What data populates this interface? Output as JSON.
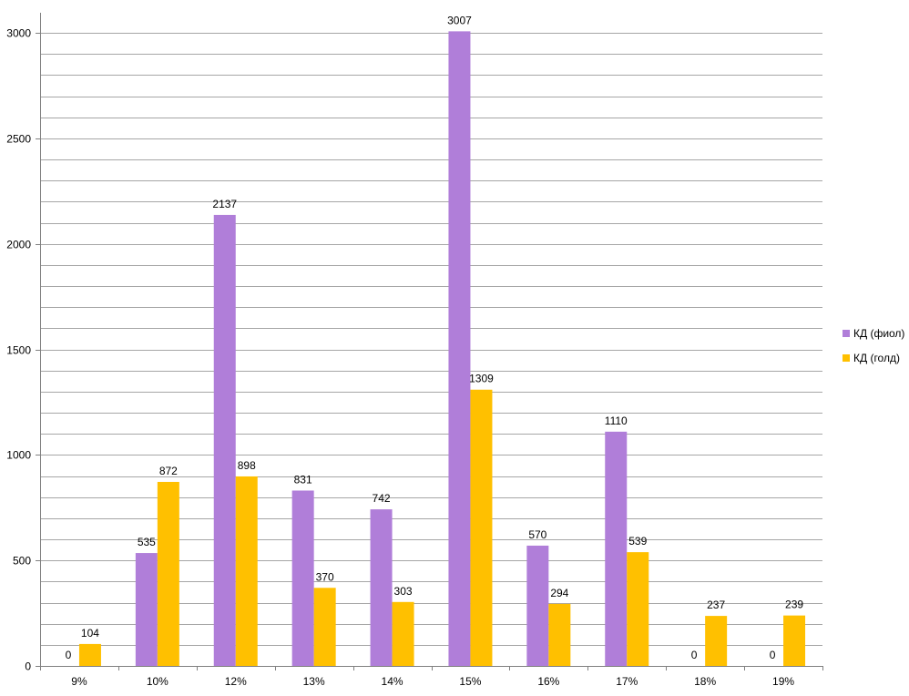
{
  "chart_data": {
    "type": "bar",
    "title": "",
    "xlabel": "",
    "ylabel": "",
    "categories": [
      "9%",
      "10%",
      "12%",
      "13%",
      "14%",
      "15%",
      "16%",
      "17%",
      "18%",
      "19%"
    ],
    "series": [
      {
        "name": "КД (фиол)",
        "color": "#b07ed9",
        "values": [
          0,
          535,
          2137,
          831,
          742,
          3007,
          570,
          1110,
          0,
          0
        ]
      },
      {
        "name": "КД (голд)",
        "color": "#ffc000",
        "values": [
          104,
          872,
          898,
          370,
          303,
          1309,
          294,
          539,
          237,
          239
        ]
      }
    ],
    "ylim": [
      0,
      3000
    ],
    "yticks": [
      0,
      500,
      1000,
      1500,
      2000,
      2500,
      3000
    ],
    "minor_grid_step": 100,
    "grid": true,
    "legend_position": "right",
    "grid_color": "#a6a6a6",
    "axis_color": "#808080"
  }
}
